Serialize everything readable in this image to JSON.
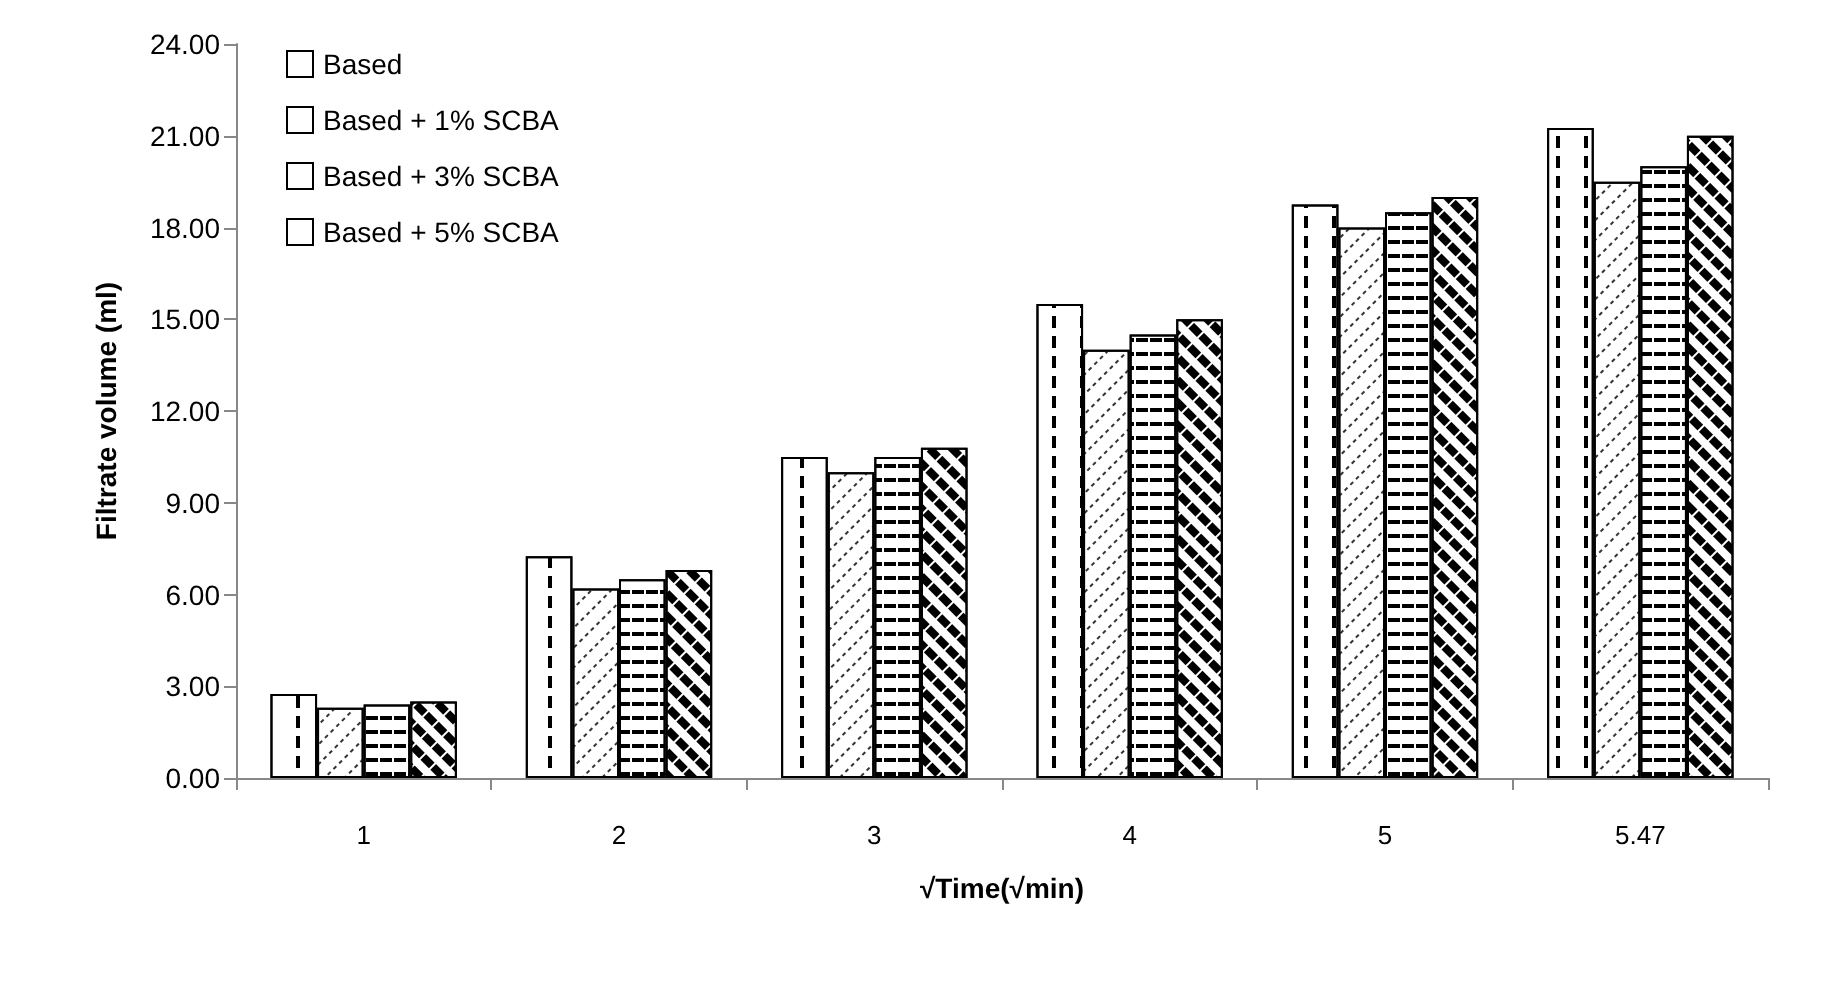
{
  "chart_data": {
    "type": "bar",
    "xlabel": "√Time(√min)",
    "ylabel": "Filtrate volume (ml)",
    "categories": [
      "1",
      "2",
      "3",
      "4",
      "5",
      "5.47"
    ],
    "series": [
      {
        "name": "Based",
        "color": "#ffffff",
        "values": [
          2.75,
          7.25,
          10.5,
          15.5,
          18.75,
          21.25
        ]
      },
      {
        "name": "Based + 1% SCBA",
        "color": "#ffffff",
        "values": [
          2.3,
          6.2,
          10.0,
          14.0,
          18.0,
          19.5
        ]
      },
      {
        "name": "Based + 3% SCBA",
        "color": "#ffffff",
        "values": [
          2.4,
          6.5,
          10.5,
          14.5,
          18.5,
          20.0
        ]
      },
      {
        "name": "Based + 5% SCBA",
        "color": "#ffffff",
        "values": [
          2.5,
          6.8,
          10.8,
          15.0,
          19.0,
          21.0
        ]
      }
    ],
    "ylim": [
      0,
      24
    ],
    "yticks": [
      {
        "value": 0,
        "label": "0.00"
      },
      {
        "value": 3,
        "label": "3.00"
      },
      {
        "value": 6,
        "label": "6.00"
      },
      {
        "value": 9,
        "label": "9.00"
      },
      {
        "value": 12,
        "label": "12.00"
      },
      {
        "value": 15,
        "label": "15.00"
      },
      {
        "value": 18,
        "label": "18.00"
      },
      {
        "value": 21,
        "label": "21.00"
      },
      {
        "value": 24,
        "label": "24.00"
      }
    ],
    "grid": false,
    "legend": "top left"
  }
}
